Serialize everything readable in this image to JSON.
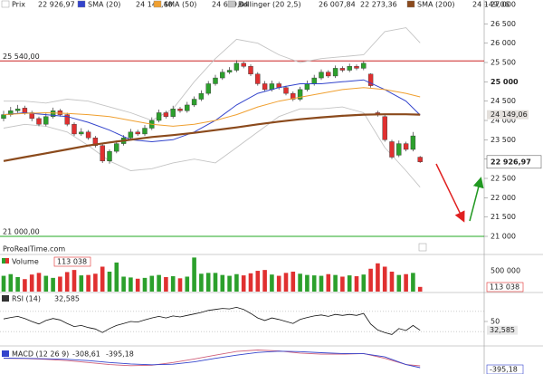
{
  "chart_data": {
    "type": "candlestick",
    "watermark": "ProRealTime.com",
    "price_name": "Prix",
    "close_label": "22 926,97",
    "up_color": "#2ca02c",
    "down_color": "#e03030",
    "open": [
      24050,
      24150,
      24250,
      24320,
      24200,
      24050,
      23900,
      24100,
      24250,
      24150,
      23900,
      23650,
      23700,
      23550,
      23350,
      22950,
      23200,
      23400,
      23550,
      23700,
      23650,
      23800,
      24000,
      24200,
      24100,
      24300,
      24250,
      24400,
      24550,
      24700,
      24950,
      25100,
      25250,
      25300,
      25480,
      25400,
      25200,
      24950,
      24800,
      24950,
      24850,
      24700,
      24550,
      24800,
      24950,
      25100,
      25250,
      25150,
      25350,
      25300,
      25400,
      25350,
      25200,
      24200,
      24100,
      23450,
      23100,
      23400,
      23250,
      23050
    ],
    "high": [
      24250,
      24350,
      24400,
      24380,
      24250,
      24100,
      24180,
      24330,
      24300,
      24200,
      23950,
      23800,
      23750,
      23600,
      23400,
      23250,
      23480,
      23620,
      23780,
      23760,
      23880,
      24080,
      24280,
      24250,
      24380,
      24350,
      24480,
      24620,
      24780,
      25020,
      25180,
      25330,
      25380,
      25560,
      25520,
      25450,
      25250,
      25020,
      25030,
      25000,
      24900,
      24750,
      24870,
      25030,
      25180,
      25320,
      25300,
      25420,
      25400,
      25470,
      25450,
      25530,
      25220,
      24250,
      24150,
      23500,
      23480,
      23450,
      23700,
      23080
    ],
    "low": [
      23980,
      24100,
      24200,
      24150,
      23980,
      23850,
      23850,
      24050,
      24100,
      23850,
      23600,
      23600,
      23500,
      23300,
      22900,
      22880,
      23150,
      23350,
      23500,
      23600,
      23600,
      23750,
      23950,
      24050,
      24050,
      24200,
      24200,
      24350,
      24500,
      24650,
      24900,
      25050,
      25200,
      25250,
      25350,
      25150,
      24900,
      24750,
      24750,
      24800,
      24650,
      24500,
      24500,
      24750,
      24900,
      25050,
      25100,
      25100,
      25250,
      25250,
      25300,
      25300,
      24850,
      24100,
      23450,
      23000,
      23050,
      23200,
      23200,
      22900
    ],
    "close": [
      24150,
      24250,
      24300,
      24200,
      24050,
      23900,
      24100,
      24250,
      24150,
      23900,
      23650,
      23700,
      23550,
      23350,
      22950,
      23200,
      23400,
      23550,
      23700,
      23650,
      23800,
      24000,
      24200,
      24100,
      24300,
      24250,
      24400,
      24550,
      24700,
      24950,
      25100,
      25250,
      25300,
      25480,
      25400,
      25200,
      24950,
      24800,
      24950,
      24850,
      24700,
      24550,
      24800,
      24950,
      25100,
      25250,
      25150,
      25350,
      25300,
      25400,
      25350,
      25480,
      24900,
      24150,
      23500,
      23050,
      23400,
      23250,
      23600,
      22926.97
    ],
    "ylim": [
      21000,
      27000
    ],
    "yticks": [
      {
        "value": 27000,
        "label": "27 000"
      },
      {
        "value": 26500,
        "label": "26 500"
      },
      {
        "value": 26000,
        "label": "26 000"
      },
      {
        "value": 25500,
        "label": "25 500"
      },
      {
        "value": 25000,
        "label": "25 000"
      },
      {
        "value": 24500,
        "label": "24 500"
      },
      {
        "value": 24000,
        "label": "24 000"
      },
      {
        "value": 23500,
        "label": "23 500"
      },
      {
        "value": 23000,
        "label": "23 000"
      },
      {
        "value": 22500,
        "label": "22 500"
      },
      {
        "value": 22000,
        "label": "22 000"
      },
      {
        "value": 21500,
        "label": "21 500"
      },
      {
        "value": 21000,
        "label": "21 000"
      }
    ],
    "levels": [
      {
        "value": 25540,
        "label": "25 540,00",
        "color": "#cc2222"
      },
      {
        "value": 21000,
        "label": "21 000,00",
        "color": "#22aa22"
      }
    ],
    "line_x": [
      0,
      3,
      6,
      9,
      12,
      15,
      18,
      21,
      24,
      27,
      30,
      33,
      36,
      39,
      42,
      45,
      48,
      51,
      54,
      57,
      59
    ],
    "overlays": [
      {
        "name": "SMA (20)",
        "color": "#3344cc",
        "width": 1,
        "last_label": "24 140,40",
        "values": [
          24150,
          24200,
          24150,
          24100,
          23950,
          23750,
          23500,
          23450,
          23500,
          23700,
          24000,
          24400,
          24700,
          24850,
          24950,
          24950,
          25000,
          25050,
          24800,
          24500,
          24140.4
        ]
      },
      {
        "name": "SMA (50)",
        "color": "#f0a030",
        "width": 1,
        "last_label": "24 609,04",
        "values": [
          24150,
          24180,
          24200,
          24180,
          24150,
          24100,
          24000,
          23900,
          23850,
          23900,
          24000,
          24150,
          24350,
          24500,
          24600,
          24700,
          24800,
          24850,
          24800,
          24700,
          24609.04
        ]
      },
      {
        "name": "SMA (200)",
        "color": "#8b4a1c",
        "width": 2.2,
        "last_label": "24 149,06",
        "values": [
          22950,
          23050,
          23150,
          23250,
          23350,
          23430,
          23500,
          23570,
          23620,
          23680,
          23750,
          23820,
          23900,
          23970,
          24030,
          24080,
          24120,
          24150,
          24160,
          24160,
          24149.06
        ]
      }
    ],
    "bollinger": {
      "name": "Bollinger (20 2,5)",
      "color": "#c4c4c4",
      "upper": {
        "last_label": "26 007,84",
        "values": [
          24500,
          24500,
          24450,
          24550,
          24500,
          24350,
          24200,
          24000,
          24300,
          25000,
          25600,
          26100,
          26000,
          25700,
          25500,
          25600,
          25650,
          25700,
          26300,
          26400,
          26007.84
        ]
      },
      "lower": {
        "last_label": "22 273,36",
        "values": [
          23800,
          23900,
          23850,
          23700,
          23350,
          22950,
          22700,
          22750,
          22900,
          23000,
          22900,
          23300,
          23700,
          24100,
          24300,
          24300,
          24350,
          24200,
          23300,
          22700,
          22273.36
        ]
      }
    },
    "volume": {
      "name": "Volume",
      "last_label": "113 038",
      "ylim": [
        0,
        850000
      ],
      "yticks": [
        {
          "value": 500000,
          "label": "500 000"
        }
      ],
      "values": [
        380000,
        420000,
        350000,
        300000,
        410000,
        450000,
        380000,
        330000,
        360000,
        470000,
        520000,
        390000,
        400000,
        430000,
        600000,
        480000,
        700000,
        360000,
        340000,
        310000,
        330000,
        380000,
        400000,
        350000,
        370000,
        320000,
        360000,
        820000,
        430000,
        450000,
        450000,
        400000,
        380000,
        420000,
        390000,
        440000,
        500000,
        520000,
        410000,
        380000,
        450000,
        480000,
        430000,
        400000,
        390000,
        380000,
        420000,
        400000,
        360000,
        390000,
        370000,
        410000,
        550000,
        680000,
        600000,
        480000,
        400000,
        420000,
        450000,
        113038
      ]
    },
    "rsi": {
      "name": "RSI (14)",
      "last_label": "32,585",
      "color": "#111111",
      "ylim": [
        5,
        95
      ],
      "yticks": [
        50
      ],
      "levels": [
        70,
        30
      ],
      "values": [
        55,
        58,
        60,
        56,
        50,
        45,
        52,
        56,
        53,
        46,
        40,
        42,
        38,
        35,
        28,
        36,
        42,
        46,
        50,
        49,
        53,
        57,
        60,
        57,
        61,
        59,
        62,
        65,
        68,
        72,
        74,
        76,
        75,
        78,
        74,
        66,
        57,
        52,
        57,
        54,
        50,
        46,
        54,
        58,
        61,
        63,
        60,
        64,
        62,
        64,
        62,
        66,
        45,
        33,
        28,
        24,
        36,
        32,
        42,
        32.585
      ]
    },
    "macd": {
      "name": "MACD (12 26 9)",
      "ylim": [
        -700,
        600
      ],
      "series": [
        {
          "color": "#d0607a",
          "last_label": "-308,61",
          "values": [
            50,
            40,
            0,
            -60,
            -150,
            -250,
            -300,
            -280,
            -150,
            20,
            200,
            380,
            450,
            400,
            300,
            250,
            250,
            280,
            50,
            -250,
            -308.61
          ]
        },
        {
          "color": "#3344cc",
          "last_label": "-395,18",
          "values": [
            60,
            50,
            30,
            0,
            -60,
            -150,
            -220,
            -260,
            -230,
            -120,
            50,
            200,
            330,
            390,
            370,
            320,
            280,
            270,
            120,
            -250,
            -395.18
          ]
        }
      ]
    }
  }
}
